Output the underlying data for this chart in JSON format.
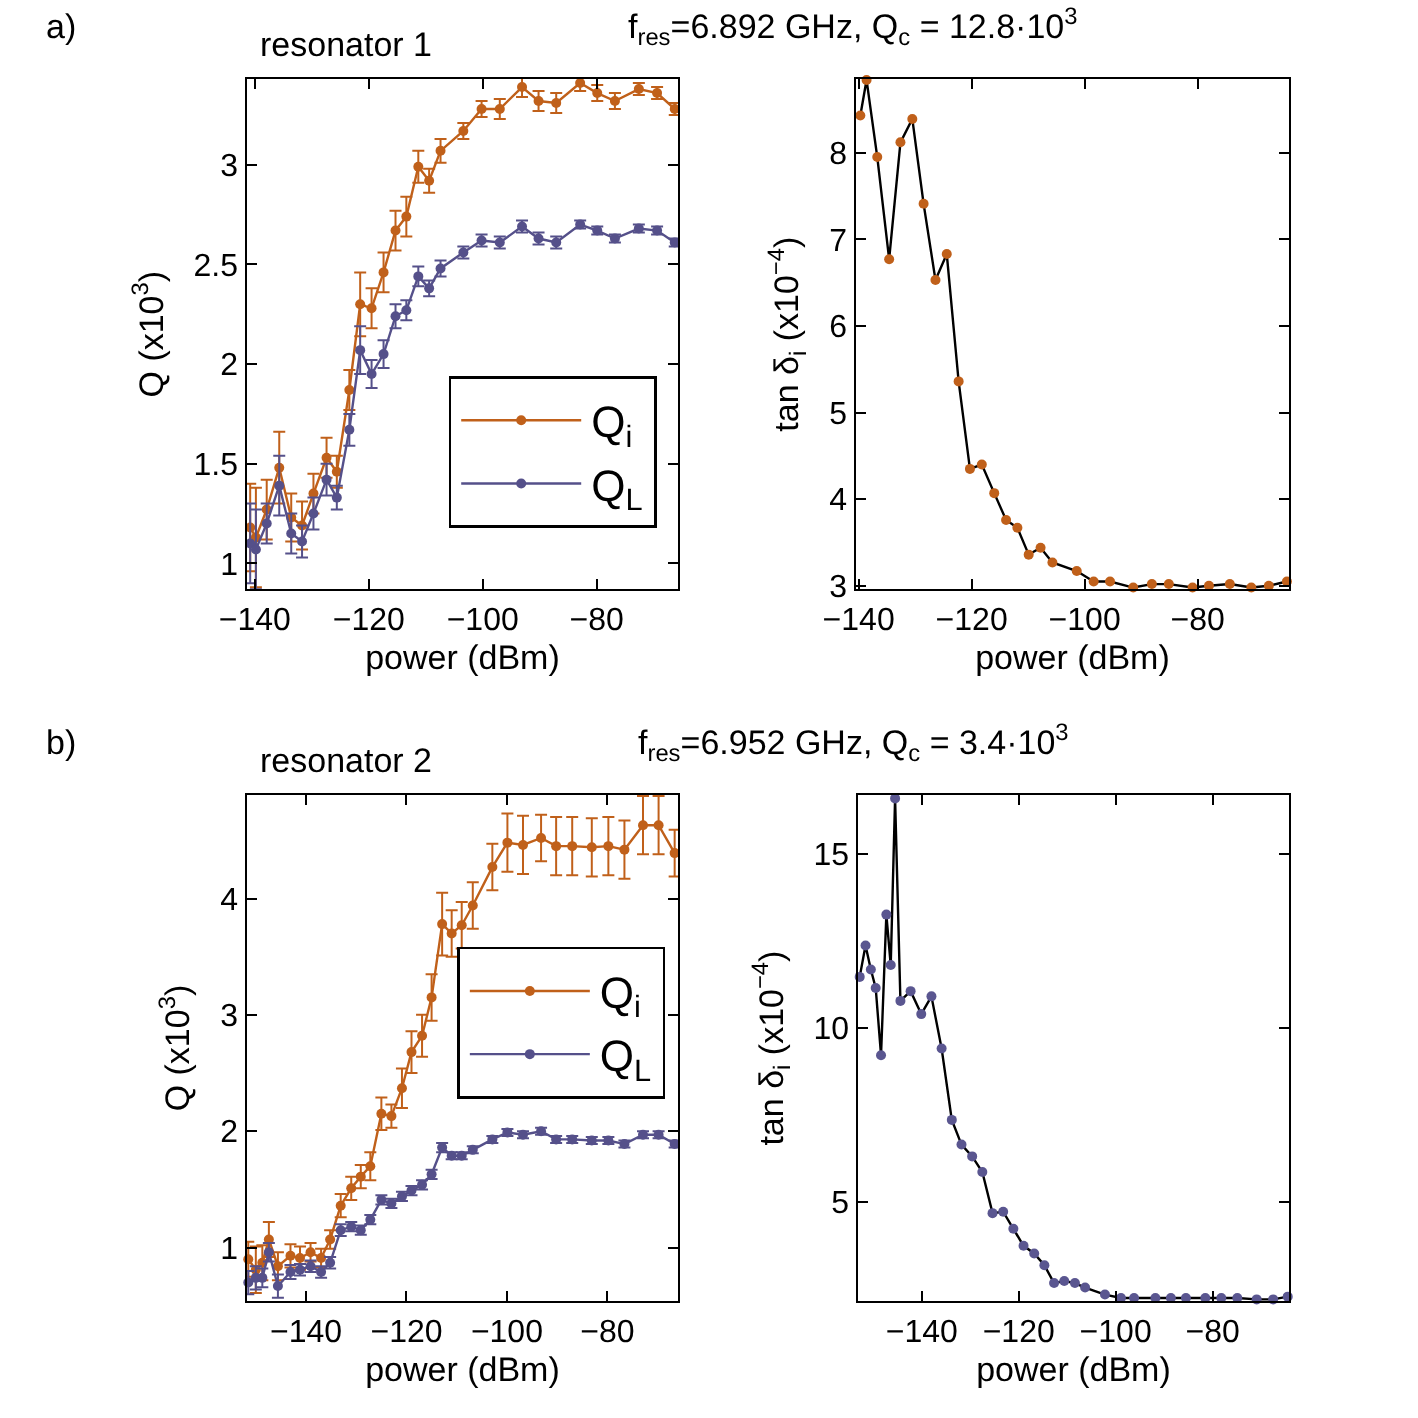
{
  "chart_data": [
    {
      "type": "line",
      "title": "resonator 1",
      "xlabel": "power (dBm)",
      "ylabel": "Q (x10$^{3}$)",
      "xlim": [
        -141.4,
        -65.7
      ],
      "xticks": [
        -140,
        -120,
        -100,
        -80
      ],
      "ylim": [
        0.87,
        3.43
      ],
      "yticks": [
        1,
        1.5,
        2,
        2.5,
        3
      ],
      "marker": "circle",
      "legend": "bottom right",
      "annotations": [
        "a)",
        "f$_{res}$=6.892 GHz, Q$_{c}$ = 12.8·10$^{3}$"
      ],
      "x": [
        -140.8,
        -139.8,
        -137.9,
        -135.7,
        -133.6,
        -131.7,
        -129.7,
        -127.4,
        -125.6,
        -123.4,
        -121.5,
        -119.5,
        -117.4,
        -115.3,
        -113.4,
        -111.3,
        -109.4,
        -107.4,
        -103.4,
        -100.2,
        -97.0,
        -93.1,
        -90.2,
        -87.1,
        -82.9,
        -79.9,
        -76.8,
        -72.6,
        -69.4,
        -66.3
      ],
      "series": [
        {
          "name": "Q$_{i}$",
          "color": "#c0601a",
          "values": [
            1.18,
            1.13,
            1.27,
            1.48,
            1.23,
            1.19,
            1.35,
            1.53,
            1.46,
            1.87,
            2.3,
            2.28,
            2.46,
            2.67,
            2.74,
            2.99,
            2.92,
            3.07,
            3.17,
            3.28,
            3.28,
            3.39,
            3.32,
            3.31,
            3.41,
            3.36,
            3.32,
            3.38,
            3.36,
            3.28
          ],
          "errors": [
            0.22,
            0.25,
            0.15,
            0.18,
            0.12,
            0.12,
            0.1,
            0.1,
            0.08,
            0.1,
            0.16,
            0.1,
            0.1,
            0.1,
            0.1,
            0.08,
            0.06,
            0.06,
            0.04,
            0.04,
            0.05,
            0.05,
            0.05,
            0.05,
            0.04,
            0.04,
            0.04,
            0.03,
            0.03,
            0.03
          ]
        },
        {
          "name": "Q$_{L}$",
          "color": "#55508a",
          "values": [
            1.1,
            1.07,
            1.2,
            1.39,
            1.15,
            1.11,
            1.25,
            1.42,
            1.33,
            1.67,
            2.07,
            1.95,
            2.05,
            2.24,
            2.27,
            2.44,
            2.38,
            2.48,
            2.56,
            2.62,
            2.61,
            2.69,
            2.63,
            2.61,
            2.7,
            2.67,
            2.63,
            2.68,
            2.67,
            2.61
          ],
          "errors": [
            0.2,
            0.2,
            0.1,
            0.15,
            0.1,
            0.08,
            0.08,
            0.08,
            0.06,
            0.08,
            0.12,
            0.07,
            0.07,
            0.06,
            0.05,
            0.05,
            0.04,
            0.04,
            0.03,
            0.03,
            0.03,
            0.03,
            0.03,
            0.03,
            0.02,
            0.02,
            0.02,
            0.02,
            0.02,
            0.02
          ]
        }
      ]
    },
    {
      "type": "line",
      "ylabel": "tan δ$_{i}$ (x10$^{−4}$)",
      "xlabel": "power (dBm)",
      "xlim": [
        -140.5,
        -63.8
      ],
      "xticks": [
        -140,
        -120,
        -100,
        -80
      ],
      "ylim": [
        2.96,
        8.85
      ],
      "yticks": [
        3,
        4,
        5,
        6,
        7,
        8
      ],
      "marker": "circle",
      "legend": false,
      "x": [
        -139.7,
        -138.6,
        -136.7,
        -134.6,
        -132.6,
        -130.5,
        -128.5,
        -126.4,
        -124.4,
        -122.3,
        -120.3,
        -118.2,
        -116.0,
        -113.9,
        -111.9,
        -109.9,
        -107.8,
        -105.7,
        -101.4,
        -98.4,
        -95.5,
        -91.4,
        -88.1,
        -85.1,
        -80.9,
        -78.0,
        -74.3,
        -70.5,
        -67.4,
        -64.2
      ],
      "series": [
        {
          "color": "#000000",
          "colors": [
            "#c0601a",
            "#c0601a",
            "#c0601a",
            "#c0601a",
            "#c0601a",
            "#c0601a",
            "#c0601a",
            "#c0601a",
            "#c0601a",
            "#c0601a",
            "#c0601a",
            "#c0601a",
            "#c0601a",
            "#c0601a",
            "#c0601a",
            "#c0601a",
            "#c0601a",
            "#c0601a",
            "#c0601a",
            "#c0601a",
            "#c0601a",
            "#c0601a",
            "#c0601a",
            "#c0601a",
            "#c0601a",
            "#c0601a",
            "#c0601a",
            "#c0601a",
            "#c0601a",
            "#c0601a"
          ],
          "values": [
            8.43,
            8.84,
            7.95,
            6.77,
            8.12,
            8.39,
            7.41,
            6.53,
            6.83,
            5.36,
            4.35,
            4.4,
            4.07,
            3.76,
            3.67,
            3.36,
            3.44,
            3.27,
            3.17,
            3.05,
            3.05,
            2.98,
            3.02,
            3.02,
            2.98,
            3.0,
            3.02,
            2.98,
            3.0,
            3.05
          ]
        }
      ]
    },
    {
      "type": "line",
      "title": "resonator 2",
      "xlabel": "power (dBm)",
      "ylabel": "Q (x10$^{3}$)",
      "xlim": [
        -151.8,
        -65.9
      ],
      "xticks": [
        -140,
        -120,
        -100,
        -80
      ],
      "ylim": [
        0.54,
        4.89
      ],
      "yticks": [
        1,
        2,
        3,
        4
      ],
      "marker": "circle",
      "legend": "right",
      "annotations": [
        "b)",
        "f$_{res}$=6.952 GHz, Q$_{c}$ = 3.4·10$^{3}$"
      ],
      "x": [
        -151.5,
        -150.0,
        -148.7,
        -147.4,
        -145.6,
        -143.1,
        -141.2,
        -139.1,
        -137.0,
        -135.2,
        -133.1,
        -131.0,
        -129.1,
        -127.2,
        -125.0,
        -123.0,
        -120.9,
        -119.0,
        -116.9,
        -115.0,
        -112.9,
        -111.0,
        -109.0,
        -106.8,
        -102.9,
        -99.9,
        -96.8,
        -93.2,
        -90.2,
        -87.0,
        -83.1,
        -79.8,
        -76.6,
        -72.9,
        -69.8,
        -66.6
      ],
      "series": [
        {
          "name": "Q$_{i}$",
          "color": "#c0601a",
          "values": [
            0.9,
            0.81,
            0.87,
            1.07,
            0.84,
            0.93,
            0.91,
            0.96,
            0.91,
            1.07,
            1.36,
            1.51,
            1.61,
            1.7,
            2.15,
            2.13,
            2.37,
            2.68,
            2.82,
            3.15,
            3.78,
            3.7,
            3.77,
            3.94,
            4.27,
            4.48,
            4.46,
            4.52,
            4.45,
            4.45,
            4.44,
            4.45,
            4.42,
            4.63,
            4.63,
            4.39
          ],
          "errors": [
            0.15,
            0.2,
            0.15,
            0.15,
            0.12,
            0.1,
            0.1,
            0.08,
            0.08,
            0.08,
            0.1,
            0.1,
            0.1,
            0.12,
            0.14,
            0.1,
            0.17,
            0.18,
            0.18,
            0.2,
            0.27,
            0.2,
            0.2,
            0.2,
            0.2,
            0.25,
            0.25,
            0.2,
            0.25,
            0.25,
            0.25,
            0.25,
            0.25,
            0.25,
            0.25,
            0.2
          ]
        },
        {
          "name": "Q$_{L}$",
          "color": "#55508a",
          "values": [
            0.7,
            0.74,
            0.74,
            0.96,
            0.67,
            0.79,
            0.81,
            0.84,
            0.79,
            0.87,
            1.15,
            1.18,
            1.15,
            1.24,
            1.41,
            1.38,
            1.44,
            1.49,
            1.54,
            1.63,
            1.86,
            1.79,
            1.79,
            1.84,
            1.93,
            1.99,
            1.97,
            2.0,
            1.93,
            1.93,
            1.92,
            1.92,
            1.89,
            1.97,
            1.97,
            1.89
          ],
          "errors": [
            0.1,
            0.1,
            0.08,
            0.08,
            0.1,
            0.06,
            0.05,
            0.05,
            0.05,
            0.05,
            0.05,
            0.04,
            0.04,
            0.04,
            0.04,
            0.04,
            0.04,
            0.04,
            0.04,
            0.04,
            0.04,
            0.03,
            0.03,
            0.03,
            0.03,
            0.03,
            0.03,
            0.03,
            0.03,
            0.03,
            0.03,
            0.03,
            0.03,
            0.03,
            0.03,
            0.03
          ]
        }
      ]
    },
    {
      "type": "line",
      "ylabel": "tan δ$_{i}$ (x10$^{−4}$)",
      "xlabel": "power (dBm)",
      "xlim": [
        -153.2,
        -64.2
      ],
      "xticks": [
        -140,
        -120,
        -100,
        -80
      ],
      "ylim": [
        2.15,
        16.7
      ],
      "yticks": [
        5,
        10,
        15
      ],
      "marker": "circle",
      "legend": false,
      "x": [
        -152.8,
        -151.6,
        -150.5,
        -149.5,
        -148.4,
        -147.3,
        -146.4,
        -145.5,
        -144.4,
        -142.3,
        -140.1,
        -138.0,
        -135.9,
        -133.8,
        -131.8,
        -129.6,
        -127.5,
        -125.4,
        -123.2,
        -121.1,
        -119.0,
        -116.8,
        -114.7,
        -112.7,
        -110.6,
        -108.4,
        -106.3,
        -102.2,
        -98.9,
        -96.2,
        -91.8,
        -88.6,
        -85.5,
        -81.5,
        -78.2,
        -74.9,
        -70.9,
        -67.5,
        -64.5
      ],
      "series": [
        {
          "color": "#000000",
          "colors": [
            "#5a5690",
            "#5a5690",
            "#5a5690",
            "#5a5690",
            "#5a5690",
            "#5a5690",
            "#5a5690",
            "#5a5690",
            "#5a5690",
            "#5a5690",
            "#5a5690",
            "#5a5690",
            "#5a5690",
            "#5a5690",
            "#5a5690",
            "#5a5690",
            "#5a5690",
            "#5a5690",
            "#5a5690",
            "#5a5690",
            "#5a5690",
            "#5a5690",
            "#5a5690",
            "#5a5690",
            "#5a5690",
            "#5a5690",
            "#5a5690",
            "#5a5690",
            "#5a5690",
            "#5a5690",
            "#5a5690",
            "#5a5690",
            "#5a5690",
            "#5a5690",
            "#5a5690",
            "#5a5690",
            "#5a5690",
            "#5a5690",
            "#5a5690"
          ],
          "values": [
            11.47,
            12.37,
            11.68,
            11.15,
            9.22,
            13.26,
            11.81,
            16.6,
            10.78,
            11.06,
            10.4,
            10.91,
            9.41,
            7.36,
            6.65,
            6.31,
            5.86,
            4.68,
            4.72,
            4.23,
            3.74,
            3.52,
            3.18,
            2.67,
            2.73,
            2.67,
            2.54,
            2.34,
            2.24,
            2.24,
            2.24,
            2.24,
            2.24,
            2.24,
            2.24,
            2.24,
            2.2,
            2.2,
            2.28
          ]
        }
      ]
    }
  ]
}
